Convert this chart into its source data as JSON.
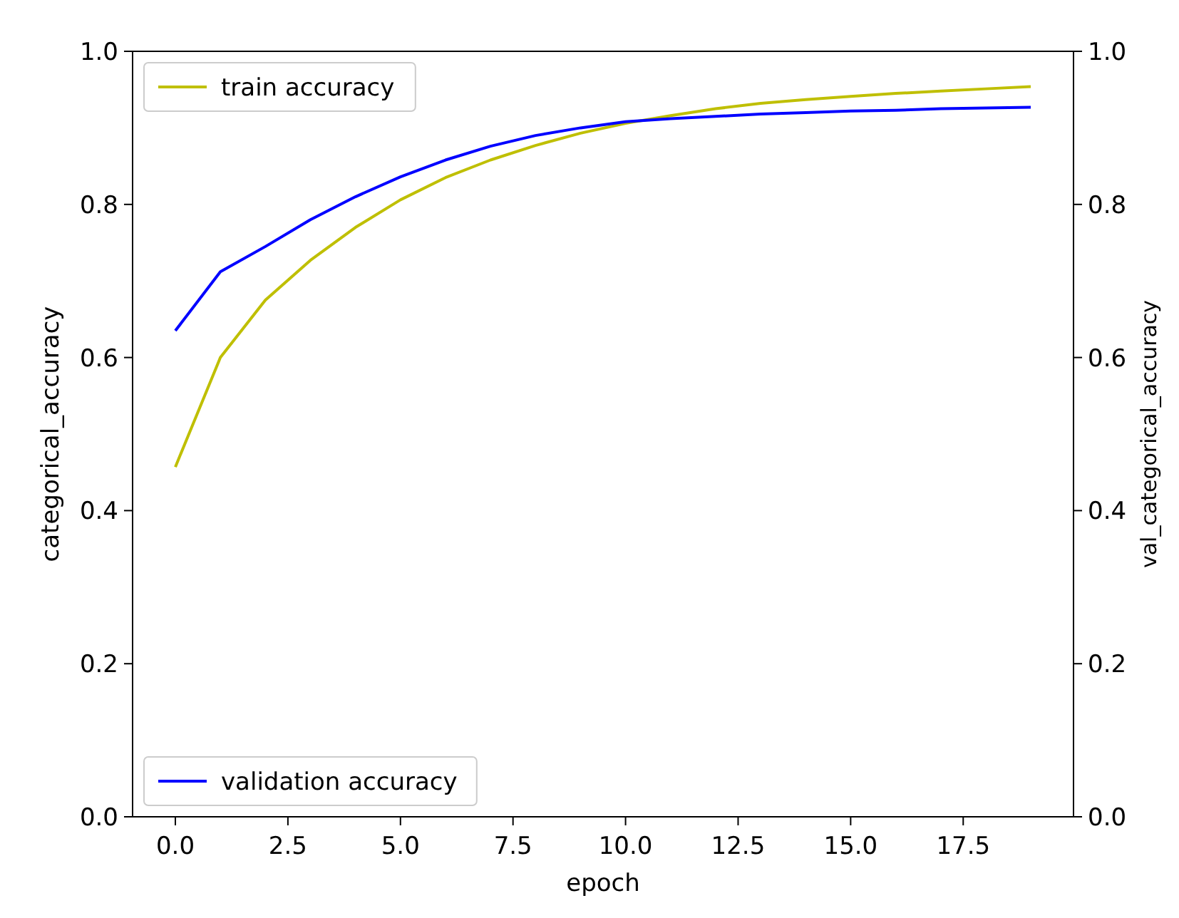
{
  "chart_data": {
    "type": "line",
    "xlabel": "epoch",
    "ylabel": "categorical_accuracy",
    "y2label": "val_categorical_accuracy",
    "x": [
      0,
      1,
      2,
      3,
      4,
      5,
      6,
      7,
      8,
      9,
      10,
      11,
      12,
      13,
      14,
      15,
      16,
      17,
      18,
      19
    ],
    "series": [
      {
        "name": "train accuracy",
        "color": "#bfbf00",
        "values": [
          0.457,
          0.6,
          0.675,
          0.727,
          0.77,
          0.806,
          0.835,
          0.858,
          0.877,
          0.893,
          0.906,
          0.916,
          0.925,
          0.932,
          0.937,
          0.941,
          0.945,
          0.948,
          0.951,
          0.954
        ]
      },
      {
        "name": "validation accuracy",
        "color": "#0000ff",
        "axis": "y2",
        "values": [
          0.635,
          0.712,
          0.745,
          0.78,
          0.81,
          0.836,
          0.858,
          0.876,
          0.89,
          0.9,
          0.908,
          0.912,
          0.915,
          0.918,
          0.92,
          0.922,
          0.923,
          0.925,
          0.926,
          0.927
        ]
      }
    ],
    "xlim": [
      -0.95,
      19.95
    ],
    "xticks": [
      {
        "value": 0,
        "label": "0.0"
      },
      {
        "value": 2.5,
        "label": "2.5"
      },
      {
        "value": 5,
        "label": "5.0"
      },
      {
        "value": 7.5,
        "label": "7.5"
      },
      {
        "value": 10,
        "label": "10.0"
      },
      {
        "value": 12.5,
        "label": "12.5"
      },
      {
        "value": 15,
        "label": "15.0"
      },
      {
        "value": 17.5,
        "label": "17.5"
      }
    ],
    "ylim": [
      0,
      1
    ],
    "yticks": [
      {
        "value": 0,
        "label": "0.0"
      },
      {
        "value": 0.2,
        "label": "0.2"
      },
      {
        "value": 0.4,
        "label": "0.4"
      },
      {
        "value": 0.6,
        "label": "0.6"
      },
      {
        "value": 0.8,
        "label": "0.8"
      },
      {
        "value": 1,
        "label": "1.0"
      }
    ],
    "y2lim": [
      0,
      1
    ],
    "y2ticks": [
      {
        "value": 0,
        "label": "0.0"
      },
      {
        "value": 0.2,
        "label": "0.2"
      },
      {
        "value": 0.4,
        "label": "0.4"
      },
      {
        "value": 0.6,
        "label": "0.6"
      },
      {
        "value": 0.8,
        "label": "0.8"
      },
      {
        "value": 1,
        "label": "1.0"
      }
    ],
    "legend": [
      "top left",
      "bottom left"
    ],
    "grid": false,
    "line_style": "solid",
    "marker": "none"
  }
}
